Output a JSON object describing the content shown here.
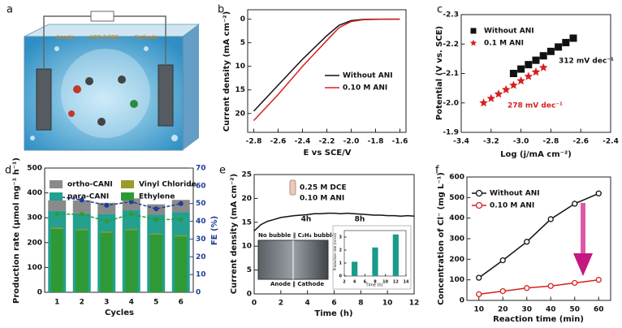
{
  "illustration": {
    "label": "a",
    "texts": [
      "Anode",
      "AOR ‖ EER",
      "Cathode"
    ]
  },
  "chart_data": [
    {
      "type": "line",
      "panel_label": "b",
      "xlabel": "E vs SCE/V",
      "ylabel": "Current density (mA cm⁻²)",
      "x": [
        -2.8,
        -2.6,
        -2.4,
        -2.2,
        -2.1,
        -2.0,
        -1.9,
        -1.8,
        -1.7,
        -1.6
      ],
      "xlim": [
        -2.85,
        -1.55
      ],
      "xticks": [
        -2.8,
        -2.6,
        -2.4,
        -2.2,
        {
          "value": -2,
          "label": "-2.0"
        },
        -1.8,
        -1.6
      ],
      "ylim": [
        -2,
        24
      ],
      "yticks": [
        0,
        5,
        10,
        15,
        20
      ],
      "y_inverted": true,
      "legend": "lower right",
      "series": [
        {
          "name": "Without ANI",
          "color": "#111111",
          "values": [
            19.5,
            14,
            8.5,
            3.5,
            1.3,
            0.3,
            0.05,
            0,
            0,
            0
          ]
        },
        {
          "name": "0.10 M ANI",
          "color": "#d62020",
          "values": [
            21.5,
            16,
            10,
            4.5,
            1.8,
            0.5,
            0.1,
            0.05,
            0,
            0
          ]
        }
      ]
    },
    {
      "type": "scatter",
      "panel_label": "c",
      "xlabel": "Log (j/mA cm⁻²)",
      "ylabel": "Potential (V vs. SCE)",
      "xlim": [
        -3.4,
        -2.4
      ],
      "xticks": [
        -3.4,
        -3.2,
        {
          "value": -3,
          "label": "-3.0"
        },
        -2.8,
        -2.6,
        -2.4
      ],
      "ylim": [
        -2.3,
        -1.9
      ],
      "yticks": [
        -2.3,
        -2.2,
        -2.1,
        {
          "value": -2,
          "label": "-2.0"
        },
        -1.9
      ],
      "y_inverted": true,
      "legend": "upper left",
      "annotations": [
        "312 mV dec⁻¹",
        "278 mV dec⁻¹"
      ],
      "series": [
        {
          "name": "Without ANI",
          "color": "#111111",
          "marker": "square",
          "x": [
            -3.05,
            -3.0,
            -2.95,
            -2.9,
            -2.85,
            -2.8,
            -2.75,
            -2.7,
            -2.65
          ],
          "values": [
            -2.1,
            -2.115,
            -2.13,
            -2.145,
            -2.16,
            -2.175,
            -2.19,
            -2.205,
            -2.22
          ]
        },
        {
          "name": "0.1 M ANI",
          "color": "#d62020",
          "marker": "star",
          "x": [
            -3.25,
            -3.2,
            -3.15,
            -3.1,
            -3.05,
            -3.0,
            -2.95,
            -2.9,
            -2.85
          ],
          "values": [
            -2.0,
            -2.015,
            -2.03,
            -2.045,
            -2.06,
            -2.075,
            -2.09,
            -2.105,
            -2.12
          ]
        }
      ]
    },
    {
      "type": "bar",
      "panel_label": "d",
      "xlabel": "Cycles",
      "ylabel": "Production rate (μmol mg⁻¹ h⁻¹)",
      "y2label": "FE (%)",
      "categories": [
        "1",
        "2",
        "3",
        "4",
        "5",
        "6"
      ],
      "ylim": [
        0,
        500
      ],
      "yticks": [
        0,
        100,
        200,
        300,
        400,
        500
      ],
      "y2lim": [
        0,
        70
      ],
      "y2ticks": [
        0,
        10,
        20,
        30,
        40,
        50,
        60,
        70
      ],
      "y2_color": "#1f3d99",
      "legend": "upper left",
      "legend_columns": 2,
      "series": [
        {
          "name": "ortho-CANI",
          "color": "#8a8a8a",
          "values": [
            42,
            52,
            45,
            48,
            42,
            50
          ]
        },
        {
          "name": "para-CANI",
          "color": "#23a08f",
          "values": [
            328,
            318,
            315,
            330,
            312,
            322
          ]
        },
        {
          "name": "Vinyl Chloride",
          "color": "#9c9a2c",
          "values": [
            5,
            4,
            4,
            4,
            4,
            4
          ]
        },
        {
          "name": "Ethylene",
          "color": "#2f9a35",
          "values": [
            255,
            250,
            240,
            250,
            232,
            225
          ]
        },
        {
          "color": "#1f3d99",
          "axis": "y2",
          "marker": "dot",
          "line_style": "dashed",
          "values": [
            54,
            52,
            49,
            51,
            47,
            50
          ]
        },
        {
          "color": "#2f9a35",
          "axis": "y2",
          "marker": "diamond",
          "line_style": "dashed",
          "values": [
            44,
            44,
            40,
            44,
            41,
            41
          ]
        }
      ]
    },
    {
      "type": "line",
      "panel_label": "e",
      "xlabel": "Time (h)",
      "ylabel": "Current density (mA cm⁻²)",
      "annotations": [
        "0.25 M DCE",
        "0.10 M ANI",
        "4h",
        "8h"
      ],
      "inset_photo_labels": [
        "No bubble ‖ C₂H₄ bubble",
        "Anode ‖ Cathode"
      ],
      "x": [
        0,
        0.5,
        1,
        1.5,
        2,
        2.5,
        3,
        3.5,
        4,
        4.5,
        5,
        5.5,
        6,
        6.5,
        7,
        7.5,
        8,
        8.5,
        9,
        9.5,
        10,
        10.5,
        11,
        11.5,
        12
      ],
      "xlim": [
        0,
        12
      ],
      "xticks": [
        0,
        2,
        4,
        6,
        8,
        10,
        12
      ],
      "ylim": [
        0,
        25
      ],
      "yticks": [
        0,
        5,
        10,
        15,
        20,
        25
      ],
      "series": [
        {
          "color": "#111111",
          "values": [
            13.2,
            14.5,
            15.2,
            15.6,
            16,
            16.2,
            16.4,
            16.5,
            16.6,
            16.8,
            16.8,
            16.9,
            16.9,
            16.8,
            16.9,
            16.8,
            16.7,
            16.6,
            16.5,
            16.5,
            16.4,
            16.4,
            16.3,
            16.4,
            16.3
          ]
        }
      ]
    },
    {
      "type": "line",
      "panel_label": "f",
      "xlabel": "Reaction time (min)",
      "ylabel": "Concentration of Cl⁻ (mg L⁻¹)",
      "x": [
        10,
        20,
        30,
        40,
        50,
        60
      ],
      "xlim": [
        5,
        65
      ],
      "xticks": [
        10,
        20,
        30,
        40,
        50,
        60
      ],
      "ylim": [
        0,
        600
      ],
      "yticks": [
        0,
        100,
        200,
        300,
        400,
        500,
        600
      ],
      "legend": "upper left",
      "series": [
        {
          "name": "Without ANI",
          "color": "#111111",
          "marker": "circle",
          "values": [
            110,
            195,
            285,
            395,
            470,
            520
          ]
        },
        {
          "name": "0.10 M ANI",
          "color": "#d62020",
          "marker": "circle",
          "values": [
            30,
            45,
            60,
            70,
            85,
            100
          ]
        }
      ]
    },
    {
      "type": "bar",
      "xlabel": "Time (h)",
      "ylabel": "Production rate (mmol)",
      "x": [
        4,
        8,
        12
      ],
      "xlim": [
        2,
        14
      ],
      "xticks": [
        2,
        4,
        6,
        8,
        10,
        12,
        14
      ],
      "ylim": [
        0,
        3.5
      ],
      "yticks": [
        0,
        1,
        2,
        3
      ],
      "series": [
        {
          "color": "#1a9a8a",
          "values": [
            1.1,
            2.2,
            3.2
          ]
        }
      ]
    }
  ]
}
